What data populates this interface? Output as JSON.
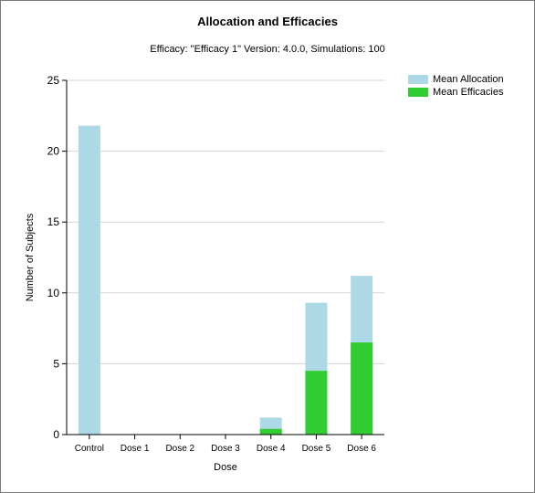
{
  "header": {
    "title": "Allocation and Efficacies",
    "subtitle": "Efficacy: \"Efficacy 1\" Version: 4.0.0, Simulations: 100"
  },
  "colors": {
    "allocation": "#add8e6",
    "efficacies": "#32cd32",
    "grid": "#d3d3d3",
    "axis": "#000000"
  },
  "chart_data": {
    "type": "bar",
    "stacked": "overlay",
    "title": "Allocation and Efficacies",
    "subtitle": "Efficacy: \"Efficacy 1\" Version: 4.0.0, Simulations: 100",
    "xlabel": "Dose",
    "ylabel": "Number of Subjects",
    "ylim": [
      0,
      25
    ],
    "yticks": [
      0,
      5,
      10,
      15,
      20,
      25
    ],
    "grid": true,
    "legend": "top-right",
    "categories": [
      "Control",
      "Dose 1",
      "Dose 2",
      "Dose 3",
      "Dose 4",
      "Dose 5",
      "Dose 6"
    ],
    "series": [
      {
        "name": "Mean Allocation",
        "values": [
          21.8,
          0,
          0,
          0,
          1.2,
          9.3,
          11.2
        ]
      },
      {
        "name": "Mean Efficacies",
        "values": [
          0,
          0,
          0,
          0,
          0.4,
          4.5,
          6.5
        ]
      }
    ]
  }
}
